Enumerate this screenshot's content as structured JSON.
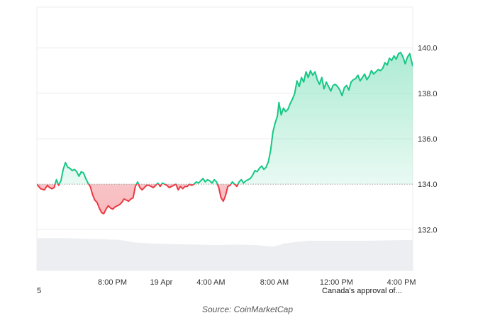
{
  "source_caption": "Source: CoinMarketCap",
  "left_edge_label": "5",
  "news_marker_label": "Canada's approval of...",
  "colors": {
    "up_line": "#16c784",
    "down_line": "#ea3943",
    "baseline_dots": "#a0a0a0",
    "gridline": "#eeeeee",
    "volume": "#eceef1"
  },
  "chart_data": {
    "type": "line",
    "baseline": 134.0,
    "ylim": [
      130.2,
      141.8
    ],
    "y_ticks": [
      132.0,
      134.0,
      136.0,
      138.0,
      140.0
    ],
    "y_tick_labels": [
      "132.0",
      "134.0",
      "136.0",
      "138.0",
      "140.0"
    ],
    "x_ticks": [
      {
        "label": "8:00 PM",
        "t": 0.201
      },
      {
        "label": "19 Apr",
        "t": 0.331
      },
      {
        "label": "4:00 AM",
        "t": 0.463
      },
      {
        "label": "8:00 AM",
        "t": 0.632
      },
      {
        "label": "12:00 PM",
        "t": 0.797
      },
      {
        "label": "4:00 PM",
        "t": 0.97
      }
    ],
    "grid": true,
    "series": [
      {
        "points": [
          [
            0.0,
            134.0
          ],
          [
            0.01,
            133.8
          ],
          [
            0.02,
            133.75
          ],
          [
            0.028,
            133.95
          ],
          [
            0.034,
            133.85
          ],
          [
            0.04,
            133.8
          ],
          [
            0.046,
            133.85
          ],
          [
            0.052,
            134.2
          ],
          [
            0.058,
            133.95
          ],
          [
            0.064,
            134.15
          ],
          [
            0.07,
            134.65
          ],
          [
            0.076,
            134.95
          ],
          [
            0.082,
            134.75
          ],
          [
            0.088,
            134.7
          ],
          [
            0.094,
            134.6
          ],
          [
            0.1,
            134.65
          ],
          [
            0.106,
            134.55
          ],
          [
            0.112,
            134.35
          ],
          [
            0.118,
            134.55
          ],
          [
            0.124,
            134.5
          ],
          [
            0.13,
            134.25
          ],
          [
            0.136,
            134.05
          ],
          [
            0.142,
            133.9
          ],
          [
            0.148,
            133.55
          ],
          [
            0.154,
            133.3
          ],
          [
            0.16,
            133.2
          ],
          [
            0.166,
            132.95
          ],
          [
            0.172,
            132.75
          ],
          [
            0.178,
            132.7
          ],
          [
            0.184,
            132.9
          ],
          [
            0.19,
            133.05
          ],
          [
            0.196,
            132.95
          ],
          [
            0.202,
            132.9
          ],
          [
            0.208,
            133.0
          ],
          [
            0.214,
            133.05
          ],
          [
            0.22,
            133.1
          ],
          [
            0.226,
            133.2
          ],
          [
            0.232,
            133.35
          ],
          [
            0.238,
            133.3
          ],
          [
            0.244,
            133.25
          ],
          [
            0.25,
            133.35
          ],
          [
            0.256,
            133.4
          ],
          [
            0.262,
            133.9
          ],
          [
            0.268,
            134.1
          ],
          [
            0.274,
            133.85
          ],
          [
            0.28,
            133.75
          ],
          [
            0.286,
            133.85
          ],
          [
            0.292,
            133.95
          ],
          [
            0.298,
            133.95
          ],
          [
            0.304,
            133.9
          ],
          [
            0.31,
            133.85
          ],
          [
            0.316,
            133.95
          ],
          [
            0.322,
            134.05
          ],
          [
            0.328,
            133.9
          ],
          [
            0.334,
            134.05
          ],
          [
            0.34,
            134.0
          ],
          [
            0.346,
            133.95
          ],
          [
            0.352,
            133.85
          ],
          [
            0.358,
            133.9
          ],
          [
            0.364,
            133.95
          ],
          [
            0.37,
            134.0
          ],
          [
            0.376,
            133.75
          ],
          [
            0.382,
            133.9
          ],
          [
            0.388,
            133.8
          ],
          [
            0.394,
            133.9
          ],
          [
            0.4,
            133.9
          ],
          [
            0.406,
            134.0
          ],
          [
            0.412,
            133.95
          ],
          [
            0.418,
            134.0
          ],
          [
            0.424,
            134.1
          ],
          [
            0.43,
            134.05
          ],
          [
            0.436,
            134.15
          ],
          [
            0.442,
            134.25
          ],
          [
            0.448,
            134.1
          ],
          [
            0.454,
            134.2
          ],
          [
            0.46,
            134.15
          ],
          [
            0.466,
            134.05
          ],
          [
            0.472,
            134.2
          ],
          [
            0.478,
            134.1
          ],
          [
            0.484,
            133.85
          ],
          [
            0.49,
            133.4
          ],
          [
            0.496,
            133.25
          ],
          [
            0.502,
            133.5
          ],
          [
            0.508,
            133.9
          ],
          [
            0.514,
            133.95
          ],
          [
            0.52,
            134.1
          ],
          [
            0.526,
            134.0
          ],
          [
            0.532,
            133.9
          ],
          [
            0.538,
            134.1
          ],
          [
            0.544,
            134.2
          ],
          [
            0.55,
            134.05
          ],
          [
            0.556,
            134.15
          ],
          [
            0.562,
            134.2
          ],
          [
            0.568,
            134.25
          ],
          [
            0.574,
            134.4
          ],
          [
            0.58,
            134.6
          ],
          [
            0.586,
            134.55
          ],
          [
            0.592,
            134.7
          ],
          [
            0.598,
            134.8
          ],
          [
            0.604,
            134.65
          ],
          [
            0.61,
            134.75
          ],
          [
            0.616,
            135.0
          ],
          [
            0.622,
            135.5
          ],
          [
            0.628,
            136.3
          ],
          [
            0.634,
            136.7
          ],
          [
            0.64,
            137.0
          ],
          [
            0.644,
            137.6
          ],
          [
            0.65,
            137.05
          ],
          [
            0.656,
            137.35
          ],
          [
            0.662,
            137.2
          ],
          [
            0.668,
            137.3
          ],
          [
            0.674,
            137.55
          ],
          [
            0.68,
            137.75
          ],
          [
            0.686,
            138.0
          ],
          [
            0.692,
            138.55
          ],
          [
            0.698,
            138.3
          ],
          [
            0.704,
            138.7
          ],
          [
            0.71,
            138.5
          ],
          [
            0.716,
            138.95
          ],
          [
            0.722,
            138.7
          ],
          [
            0.728,
            139.0
          ],
          [
            0.734,
            138.8
          ],
          [
            0.74,
            138.95
          ],
          [
            0.746,
            138.6
          ],
          [
            0.752,
            138.4
          ],
          [
            0.758,
            138.7
          ],
          [
            0.764,
            138.2
          ],
          [
            0.77,
            138.5
          ],
          [
            0.776,
            138.3
          ],
          [
            0.782,
            138.1
          ],
          [
            0.788,
            138.35
          ],
          [
            0.794,
            138.4
          ],
          [
            0.8,
            138.3
          ],
          [
            0.806,
            138.15
          ],
          [
            0.812,
            137.9
          ],
          [
            0.818,
            138.25
          ],
          [
            0.824,
            138.35
          ],
          [
            0.83,
            138.15
          ],
          [
            0.836,
            138.5
          ],
          [
            0.842,
            138.6
          ],
          [
            0.848,
            138.65
          ],
          [
            0.854,
            138.8
          ],
          [
            0.86,
            138.55
          ],
          [
            0.866,
            138.7
          ],
          [
            0.872,
            138.85
          ],
          [
            0.878,
            138.6
          ],
          [
            0.884,
            138.75
          ],
          [
            0.89,
            139.0
          ],
          [
            0.896,
            138.85
          ],
          [
            0.902,
            138.95
          ],
          [
            0.908,
            139.05
          ],
          [
            0.914,
            139.0
          ],
          [
            0.92,
            139.1
          ],
          [
            0.926,
            139.35
          ],
          [
            0.932,
            139.25
          ],
          [
            0.938,
            139.55
          ],
          [
            0.944,
            139.45
          ],
          [
            0.95,
            139.65
          ],
          [
            0.956,
            139.5
          ],
          [
            0.962,
            139.75
          ],
          [
            0.968,
            139.8
          ],
          [
            0.974,
            139.6
          ],
          [
            0.98,
            139.3
          ],
          [
            0.986,
            139.6
          ],
          [
            0.992,
            139.75
          ],
          [
            1.0,
            139.2
          ]
        ]
      }
    ],
    "volume": [
      [
        0.0,
        0.76
      ],
      [
        0.08,
        0.76
      ],
      [
        0.16,
        0.74
      ],
      [
        0.22,
        0.72
      ],
      [
        0.26,
        0.66
      ],
      [
        0.3,
        0.64
      ],
      [
        0.36,
        0.62
      ],
      [
        0.42,
        0.61
      ],
      [
        0.48,
        0.6
      ],
      [
        0.52,
        0.61
      ],
      [
        0.58,
        0.6
      ],
      [
        0.63,
        0.56
      ],
      [
        0.66,
        0.64
      ],
      [
        0.72,
        0.7
      ],
      [
        0.8,
        0.7
      ],
      [
        0.88,
        0.7
      ],
      [
        0.94,
        0.71
      ],
      [
        1.0,
        0.72
      ]
    ]
  }
}
